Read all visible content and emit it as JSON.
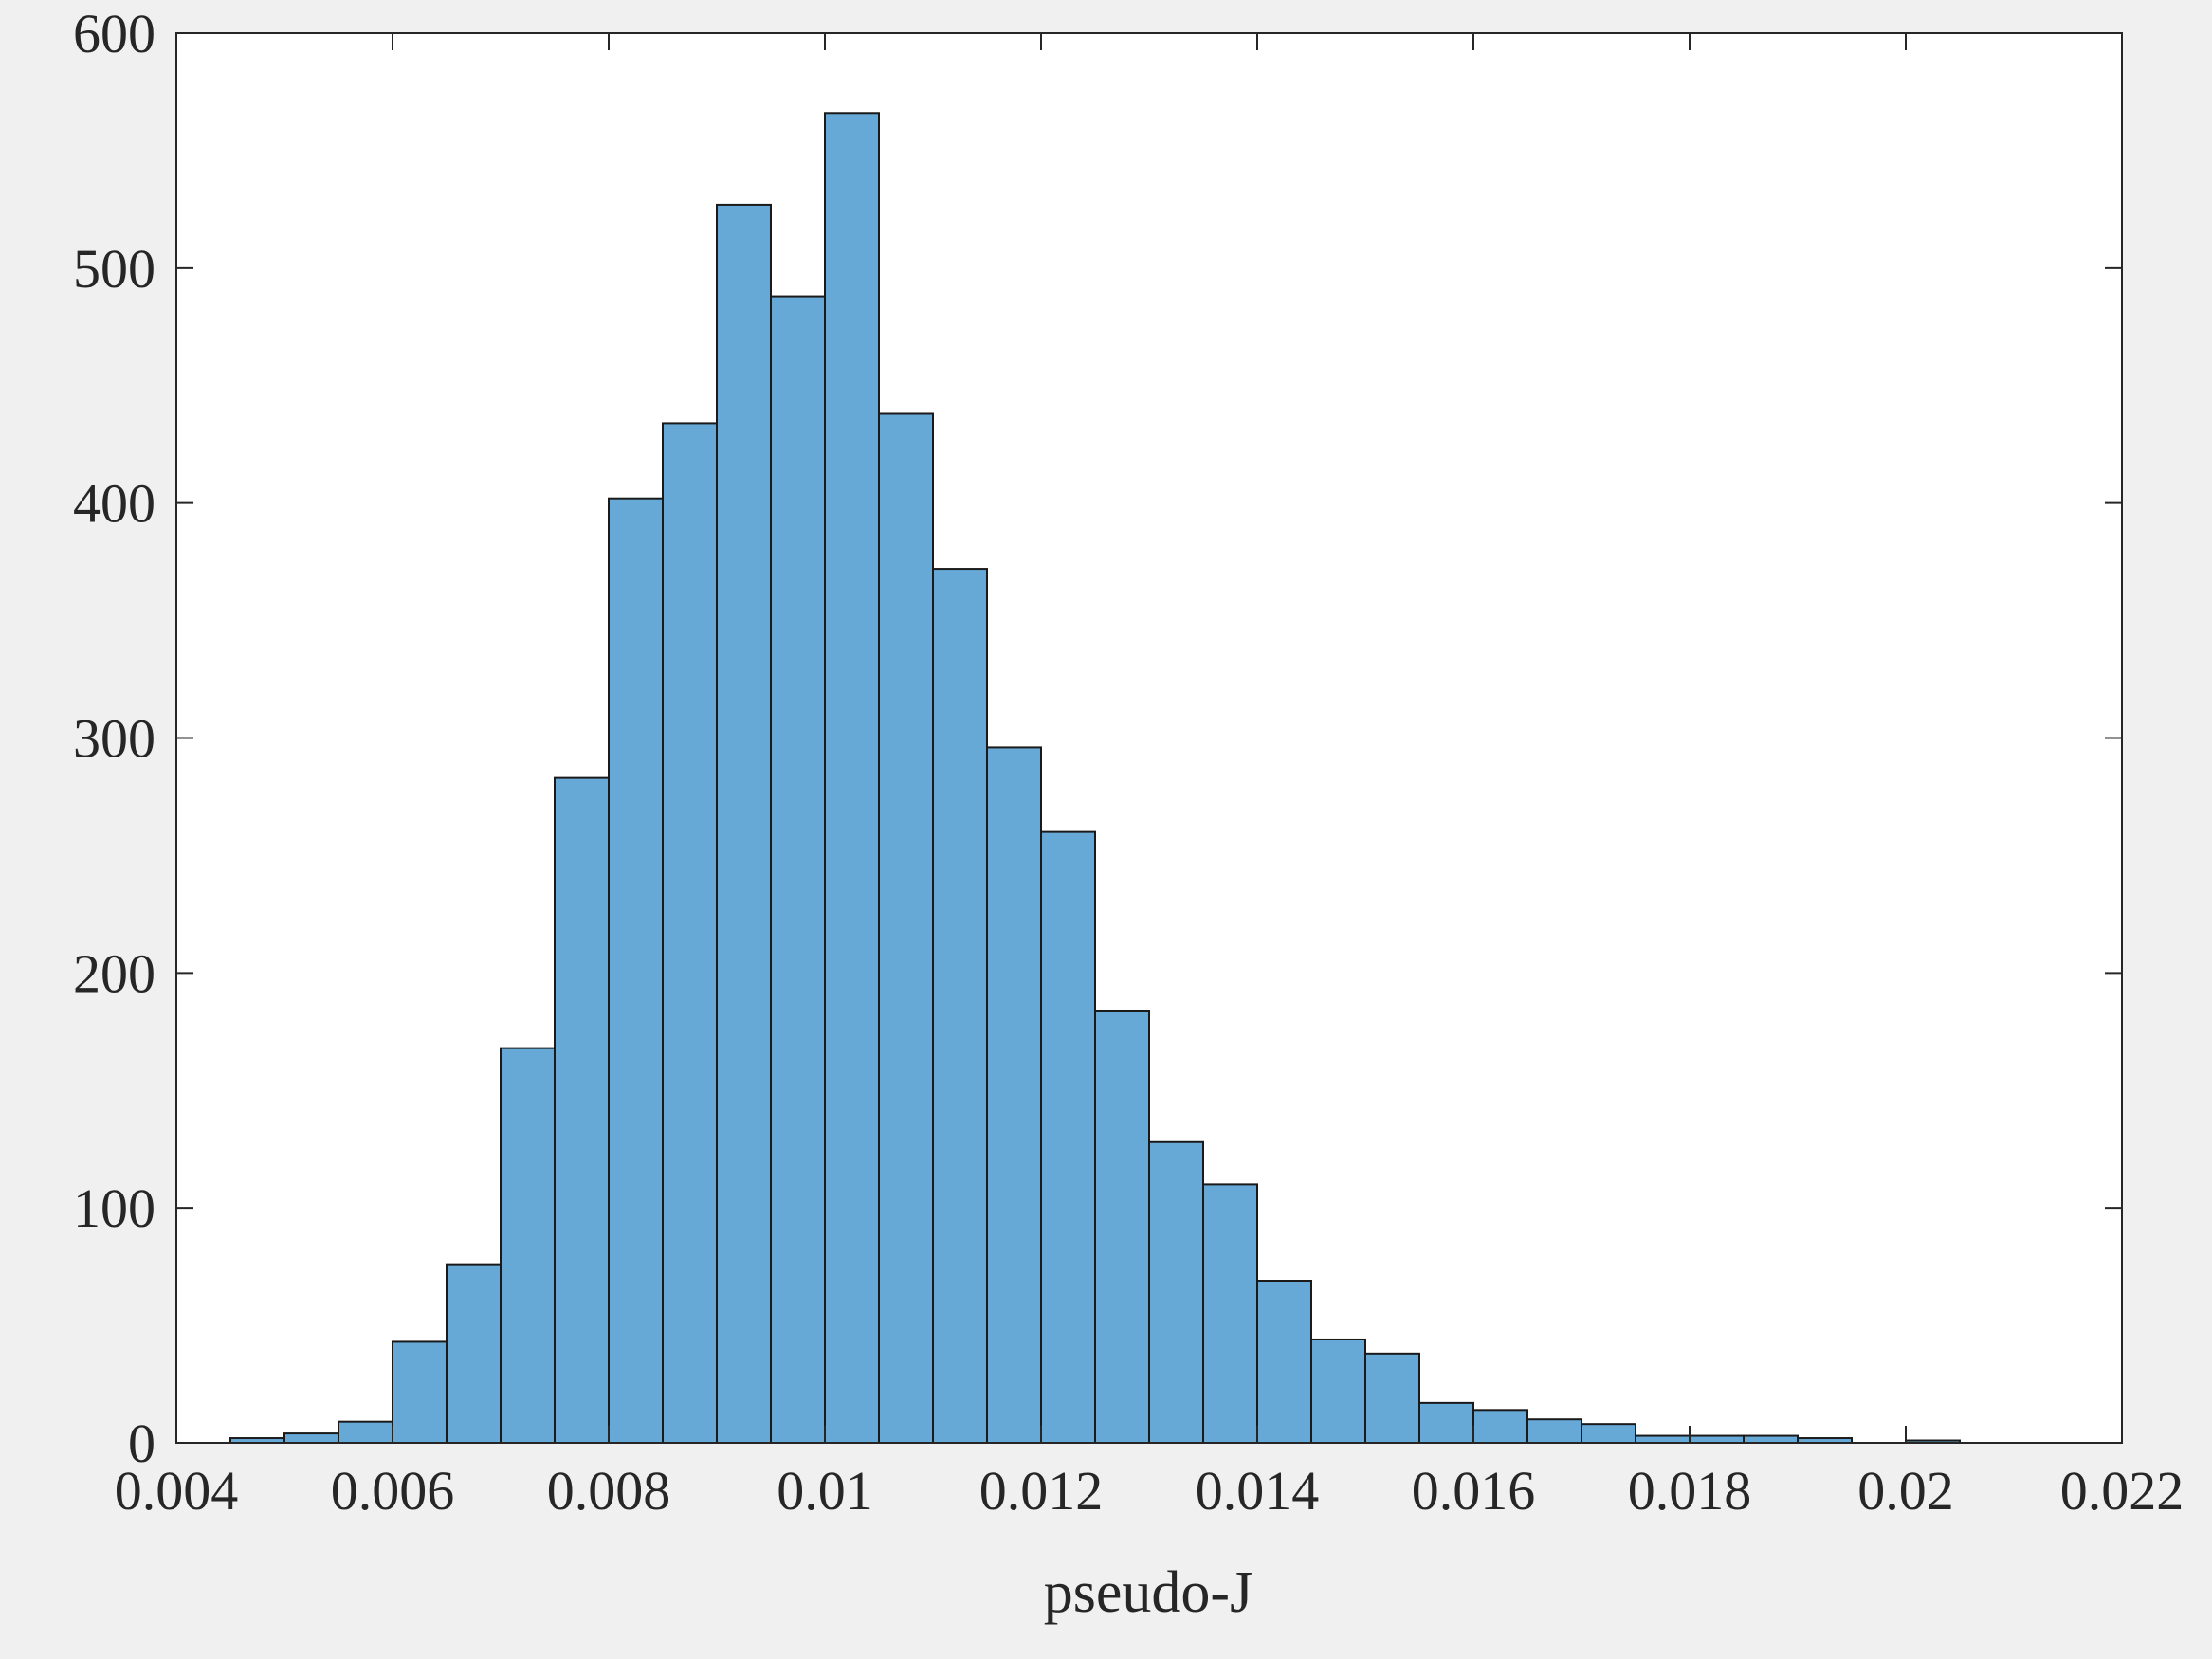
{
  "chart_data": {
    "type": "bar",
    "subtype": "histogram",
    "xlabel": "pseudo-J",
    "ylabel": "",
    "title": "",
    "xlim": [
      0.004,
      0.022
    ],
    "ylim": [
      0,
      600
    ],
    "xticks": [
      0.004,
      0.006,
      0.008,
      0.01,
      0.012,
      0.014,
      0.016,
      0.018,
      0.02,
      0.022
    ],
    "xtick_labels": [
      "0.004",
      "0.006",
      "0.008",
      "0.01",
      "0.012",
      "0.014",
      "0.016",
      "0.018",
      "0.02",
      "0.022"
    ],
    "yticks": [
      0,
      100,
      200,
      300,
      400,
      500,
      600
    ],
    "ytick_labels": [
      "0",
      "100",
      "200",
      "300",
      "400",
      "500",
      "600"
    ],
    "bin_width": 0.0005,
    "bins": [
      {
        "start": 0.0045,
        "end": 0.005,
        "count": 2
      },
      {
        "start": 0.005,
        "end": 0.0055,
        "count": 4
      },
      {
        "start": 0.0055,
        "end": 0.006,
        "count": 9
      },
      {
        "start": 0.006,
        "end": 0.0065,
        "count": 43
      },
      {
        "start": 0.0065,
        "end": 0.007,
        "count": 76
      },
      {
        "start": 0.007,
        "end": 0.0075,
        "count": 168
      },
      {
        "start": 0.0075,
        "end": 0.008,
        "count": 283
      },
      {
        "start": 0.008,
        "end": 0.0085,
        "count": 402
      },
      {
        "start": 0.0085,
        "end": 0.009,
        "count": 434
      },
      {
        "start": 0.009,
        "end": 0.0095,
        "count": 527
      },
      {
        "start": 0.0095,
        "end": 0.01,
        "count": 488
      },
      {
        "start": 0.01,
        "end": 0.0105,
        "count": 566
      },
      {
        "start": 0.0105,
        "end": 0.011,
        "count": 438
      },
      {
        "start": 0.011,
        "end": 0.0115,
        "count": 372
      },
      {
        "start": 0.0115,
        "end": 0.012,
        "count": 296
      },
      {
        "start": 0.012,
        "end": 0.0125,
        "count": 260
      },
      {
        "start": 0.0125,
        "end": 0.013,
        "count": 184
      },
      {
        "start": 0.013,
        "end": 0.0135,
        "count": 128
      },
      {
        "start": 0.0135,
        "end": 0.014,
        "count": 110
      },
      {
        "start": 0.014,
        "end": 0.0145,
        "count": 69
      },
      {
        "start": 0.0145,
        "end": 0.015,
        "count": 44
      },
      {
        "start": 0.015,
        "end": 0.0155,
        "count": 38
      },
      {
        "start": 0.0155,
        "end": 0.016,
        "count": 17
      },
      {
        "start": 0.016,
        "end": 0.0165,
        "count": 14
      },
      {
        "start": 0.0165,
        "end": 0.017,
        "count": 10
      },
      {
        "start": 0.017,
        "end": 0.0175,
        "count": 8
      },
      {
        "start": 0.0175,
        "end": 0.018,
        "count": 3
      },
      {
        "start": 0.018,
        "end": 0.0185,
        "count": 3
      },
      {
        "start": 0.0185,
        "end": 0.019,
        "count": 3
      },
      {
        "start": 0.019,
        "end": 0.0195,
        "count": 2
      },
      {
        "start": 0.0195,
        "end": 0.02,
        "count": 0
      },
      {
        "start": 0.02,
        "end": 0.0205,
        "count": 1
      }
    ],
    "grid": false,
    "legend": "none",
    "colors": {
      "bar_fill": "#66a9d7",
      "bar_edge": "#1a1a1a",
      "axes_background": "#ffffff",
      "figure_background": "#f0f0f0",
      "axis_color": "#262626"
    }
  }
}
